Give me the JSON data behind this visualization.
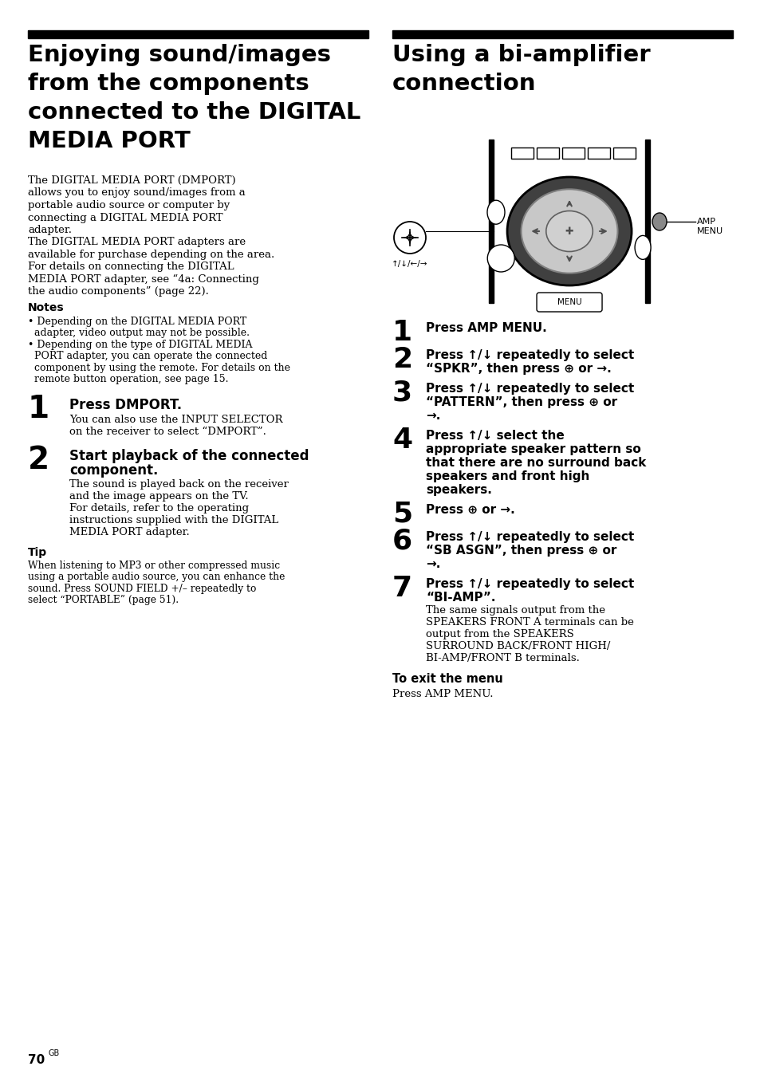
{
  "page_bg": "#ffffff",
  "header_bar_color": "#000000",
  "left_title_lines": [
    "Enjoying sound/images",
    "from the components",
    "connected to the DIGITAL",
    "MEDIA PORT"
  ],
  "right_title_lines": [
    "Using a bi-amplifier",
    "connection"
  ],
  "page_num": "70",
  "page_num_super": "GB"
}
